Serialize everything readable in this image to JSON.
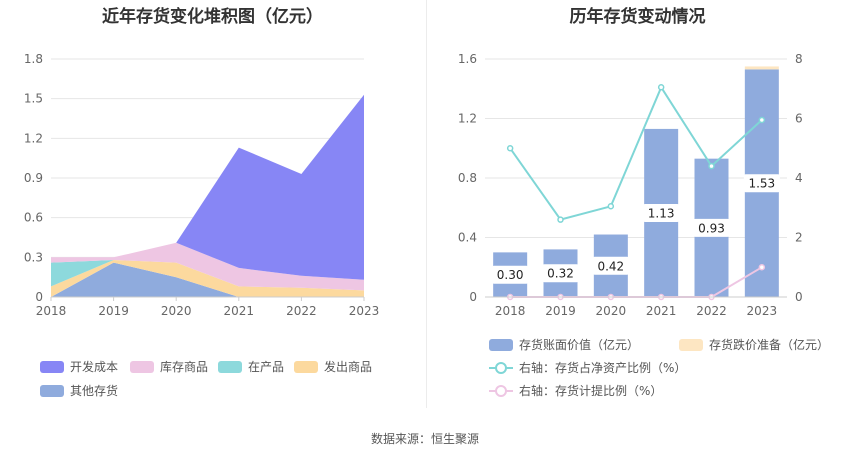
{
  "source_text": "数据来源：恒生聚源",
  "chart_data": [
    {
      "type": "area",
      "stacked": true,
      "title": "近年存货变化堆积图（亿元）",
      "x": [
        "2018",
        "2019",
        "2020",
        "2021",
        "2022",
        "2023"
      ],
      "ylim": [
        0,
        1.8
      ],
      "yticks": [
        "0",
        "0.3",
        "0.6",
        "0.9",
        "1.2",
        "1.5",
        "1.8"
      ],
      "grid": true,
      "legend_position": "bottom",
      "series": [
        {
          "name": "其他存货",
          "color": "#8fabdd",
          "values": [
            0.0,
            0.26,
            0.15,
            0.0,
            0.0,
            0.0
          ]
        },
        {
          "name": "发出商品",
          "color": "#fcd99e",
          "values": [
            0.08,
            0.02,
            0.11,
            0.08,
            0.07,
            0.05
          ]
        },
        {
          "name": "在产品",
          "color": "#8dd9dc",
          "values": [
            0.18,
            0.0,
            0.0,
            0.0,
            0.0,
            0.0
          ]
        },
        {
          "name": "库存商品",
          "color": "#eec6e3",
          "values": [
            0.04,
            0.02,
            0.15,
            0.14,
            0.09,
            0.08
          ]
        },
        {
          "name": "开发成本",
          "color": "#8786f5",
          "values": [
            0.0,
            0.0,
            0.0,
            0.91,
            0.77,
            1.4
          ]
        }
      ],
      "legend_order": [
        "开发成本",
        "库存商品",
        "在产品",
        "发出商品",
        "其他存货"
      ]
    },
    {
      "type": "bar",
      "title": "历年存货变动情况",
      "categories": [
        "2018",
        "2019",
        "2020",
        "2021",
        "2022",
        "2023"
      ],
      "ylim_left": [
        0,
        1.6
      ],
      "yticks_left": [
        "0",
        "0.4",
        "0.8",
        "1.2",
        "1.6"
      ],
      "ylim_right": [
        0,
        8
      ],
      "yticks_right": [
        "0",
        "2",
        "4",
        "6",
        "8"
      ],
      "grid": true,
      "legend_position": "bottom",
      "bars": [
        {
          "name": "存货账面价值（亿元）",
          "color": "#8fabdd",
          "values": [
            0.3,
            0.32,
            0.42,
            1.13,
            0.93,
            1.53
          ],
          "labels": [
            "0.30",
            "0.32",
            "0.42",
            "1.13",
            "0.93",
            "1.53"
          ]
        },
        {
          "name": "存货跌价准备（亿元）",
          "color": "#fde6c2",
          "values": [
            0.0,
            0.0,
            0.0,
            0.0,
            0.0,
            0.02
          ]
        }
      ],
      "lines": [
        {
          "name": "右轴：存货占净资产比例（%）",
          "color": "#7fd6d6",
          "axis": "right",
          "values": [
            5.0,
            2.6,
            3.05,
            7.05,
            4.4,
            5.95
          ]
        },
        {
          "name": "右轴：存货计提比例（%）",
          "color": "#eec6e3",
          "axis": "right",
          "values": [
            0.0,
            0.0,
            0.0,
            0.0,
            0.0,
            1.0
          ]
        }
      ]
    }
  ]
}
